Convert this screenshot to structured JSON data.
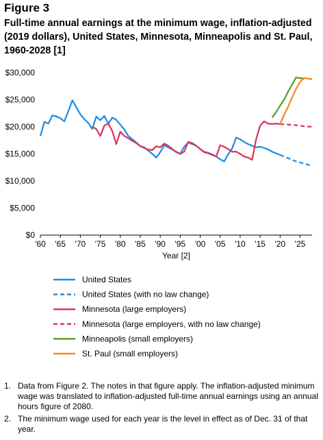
{
  "figure": {
    "label": "Figure 3",
    "title": "Full-time annual earnings at the minimum wage, inflation-adjusted (2019 dollars), United States, Minnesota, Minneapolis and St. Paul, 1960-2028 [1]"
  },
  "notes": [
    {
      "num": "1.",
      "text": "Data from Figure 2. The notes in that figure apply. The inflation-adjusted minimum wage was translated to inflation-adjusted full-time annual earnings using an annual hours figure of 2080."
    },
    {
      "num": "2.",
      "text": "The minimum wage used for each year is the level in effect as of Dec. 31 of that year."
    }
  ],
  "chart_data": {
    "type": "line",
    "title": "",
    "xlabel": "Year [2]",
    "ylabel": "",
    "xlim": [
      1960,
      2028
    ],
    "ylim": [
      0,
      30000
    ],
    "x_tick_values": [
      1960,
      1965,
      1970,
      1975,
      1980,
      1985,
      1990,
      1995,
      2000,
      2005,
      2010,
      2015,
      2020,
      2025
    ],
    "x_tick_labels": [
      "'60",
      "'65",
      "'70",
      "'75",
      "'80",
      "'85",
      "'90",
      "'95",
      "'00",
      "'05",
      "'10",
      "'15",
      "'20",
      "'25"
    ],
    "y_tick_values": [
      0,
      5000,
      10000,
      15000,
      20000,
      25000,
      30000
    ],
    "y_tick_labels": [
      "$0",
      "$5,000",
      "$10,000",
      "$15,000",
      "$20,000",
      "$25,000",
      "$30,000"
    ],
    "grid": false,
    "legend_position": "below",
    "series": [
      {
        "name": "United States",
        "color": "#1F8FE5",
        "dashed": false,
        "x": [
          1960,
          1961,
          1962,
          1963,
          1964,
          1965,
          1966,
          1967,
          1968,
          1969,
          1970,
          1971,
          1972,
          1973,
          1974,
          1975,
          1976,
          1977,
          1978,
          1979,
          1980,
          1981,
          1982,
          1983,
          1984,
          1985,
          1986,
          1987,
          1988,
          1989,
          1990,
          1991,
          1992,
          1993,
          1994,
          1995,
          1996,
          1997,
          1998,
          1999,
          2000,
          2001,
          2002,
          2003,
          2004,
          2005,
          2006,
          2007,
          2008,
          2009,
          2010,
          2011,
          2012,
          2013,
          2014,
          2015,
          2016,
          2017,
          2018,
          2019,
          2020
        ],
        "y": [
          18300,
          20900,
          20600,
          22100,
          21900,
          21600,
          21000,
          22900,
          24900,
          23600,
          22300,
          21400,
          20700,
          19600,
          21900,
          21200,
          22000,
          20600,
          21700,
          21300,
          20400,
          19500,
          18300,
          17700,
          17100,
          16400,
          16200,
          15600,
          15000,
          14300,
          15300,
          16600,
          16200,
          15800,
          15400,
          15000,
          16300,
          17100,
          16800,
          16500,
          15900,
          15400,
          15200,
          14900,
          14500,
          14000,
          13600,
          14900,
          16000,
          18000,
          17700,
          17200,
          16800,
          16500,
          16200,
          16300,
          16100,
          15800,
          15400,
          15100,
          14800
        ]
      },
      {
        "name": "United States (with no law change)",
        "color": "#1F8FE5",
        "dashed": true,
        "x": [
          2020,
          2021,
          2022,
          2023,
          2024,
          2025,
          2026,
          2027,
          2028
        ],
        "y": [
          14800,
          14500,
          14200,
          13900,
          13600,
          13400,
          13200,
          13000,
          12800
        ]
      },
      {
        "name": "Minnesota (large employers)",
        "color": "#D9385E",
        "dashed": false,
        "x": [
          1973,
          1974,
          1975,
          1976,
          1977,
          1978,
          1979,
          1980,
          1981,
          1982,
          1983,
          1984,
          1985,
          1986,
          1987,
          1988,
          1989,
          1990,
          1991,
          1992,
          1993,
          1994,
          1995,
          1996,
          1997,
          1998,
          1999,
          2000,
          2001,
          2002,
          2003,
          2004,
          2005,
          2006,
          2007,
          2008,
          2009,
          2010,
          2011,
          2012,
          2013,
          2014,
          2015,
          2016,
          2017,
          2018,
          2019,
          2020
        ],
        "y": [
          20000,
          19600,
          18300,
          20200,
          20600,
          19200,
          16800,
          19100,
          18300,
          17900,
          17400,
          17000,
          16400,
          16100,
          15800,
          15700,
          16400,
          16200,
          16900,
          16500,
          15900,
          15300,
          15000,
          15400,
          17200,
          17000,
          16500,
          15900,
          15300,
          15100,
          14800,
          14500,
          16600,
          16300,
          15900,
          15400,
          15400,
          15000,
          14500,
          14300,
          13900,
          17700,
          20200,
          21000,
          20600,
          20500,
          20600,
          20500
        ]
      },
      {
        "name": "Minnesota (large employers, with no law change)",
        "color": "#D9385E",
        "dashed": true,
        "x": [
          2020,
          2022,
          2024,
          2026,
          2028
        ],
        "y": [
          20500,
          20400,
          20300,
          20100,
          20000
        ]
      },
      {
        "name": "Minneapolis (small employers)",
        "color": "#5A9E2A",
        "dashed": false,
        "x": [
          2018,
          2019,
          2020,
          2021,
          2022,
          2023,
          2024,
          2025,
          2026
        ],
        "y": [
          21700,
          22700,
          23900,
          25000,
          26500,
          27800,
          29100,
          29000,
          28900
        ]
      },
      {
        "name": "St. Paul (small employers)",
        "color": "#F7881F",
        "dashed": false,
        "x": [
          2020,
          2021,
          2022,
          2023,
          2024,
          2025,
          2026,
          2027,
          2028
        ],
        "y": [
          20500,
          22200,
          23700,
          25400,
          27000,
          28300,
          29000,
          28900,
          28800
        ]
      }
    ]
  }
}
